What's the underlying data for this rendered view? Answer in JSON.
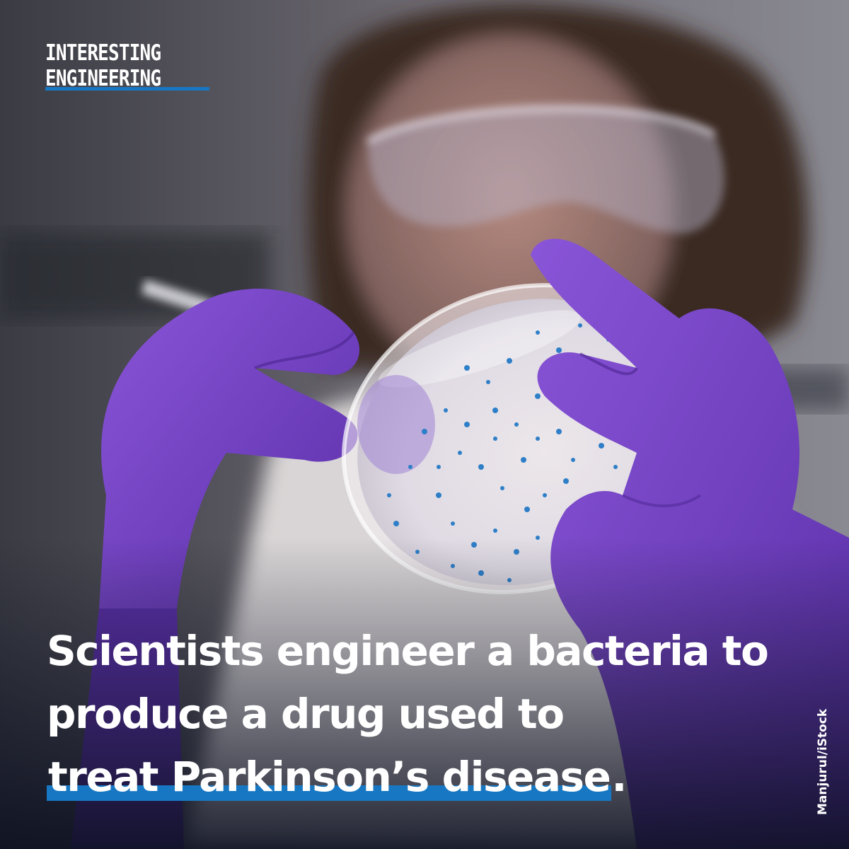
{
  "brand": {
    "line1": "INTERESTING",
    "line2": "ENGINEERING",
    "accent_color": "#1777c2"
  },
  "headline": {
    "line1": "Scientists engineer a bacteria to",
    "line2": "produce a drug used to",
    "line3_highlight": "treat Parkinson’s disease",
    "line3_end": "."
  },
  "credit": "Manjurul/iStock"
}
